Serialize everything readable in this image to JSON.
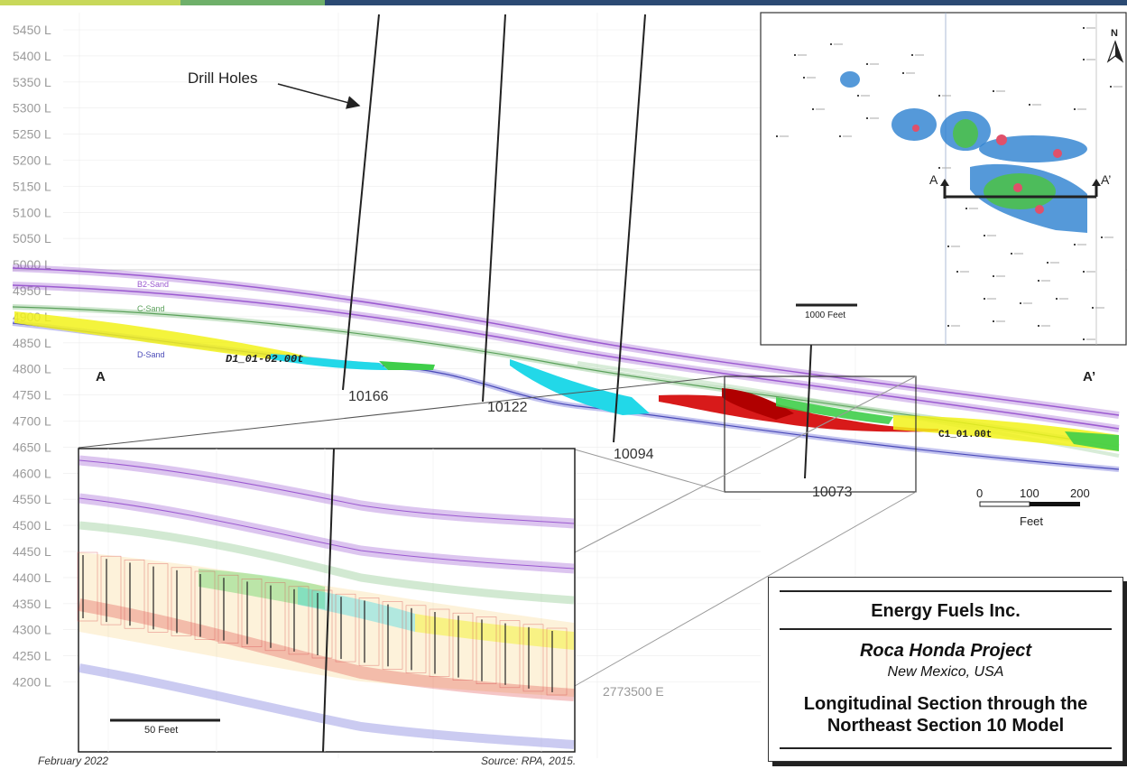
{
  "elevation_labels": [
    "5450 L",
    "5400 L",
    "5350 L",
    "5300 L",
    "5250 L",
    "5200 L",
    "5150 L",
    "5100 L",
    "5050 L",
    "5000 L",
    "4950 L",
    "4900 L",
    "4850 L",
    "4800 L",
    "4750 L",
    "4700 L",
    "4650 L",
    "4600 L",
    "4550 L",
    "4500 L",
    "4450 L",
    "4400 L",
    "4350 L",
    "4300 L",
    "4250 L",
    "4200 L"
  ],
  "callouts": {
    "drill_holes": "Drill Holes",
    "section_start": "A",
    "section_end": "A’"
  },
  "drill_holes": [
    "10166",
    "10122",
    "10094",
    "10073"
  ],
  "sand_labels": {
    "b2": "B2-Sand",
    "c": "C-Sand",
    "d": "D-Sand"
  },
  "zone_labels": {
    "d1": "D1_01-02.00t",
    "c1": "C1_01.00t"
  },
  "scale_bar": {
    "ticks": [
      "0",
      "100",
      "200"
    ],
    "unit": "Feet"
  },
  "inset_map": {
    "north": "N",
    "scale_label": "1000 Feet",
    "section_start": "A",
    "section_end": "A’"
  },
  "inset_detail": {
    "scale_label": "50 Feet",
    "easting_label": "2773500 E"
  },
  "legend": {
    "company": "Energy Fuels Inc.",
    "project": "Roca Honda Project",
    "location": "New Mexico, USA",
    "title_line1": "Longitudinal Section through the",
    "title_line2": "Northeast Section 10 Model"
  },
  "footer": {
    "date": "February 2022",
    "source": "Source:  RPA, 2015."
  },
  "colors": {
    "b2_sand": "#9b59d0",
    "c_sand": "#7fbf7f",
    "d_sand": "#6a6ad8",
    "ore_red": "#d81a1a",
    "ore_yellow": "#f2f21a",
    "ore_cyan": "#22d8e8",
    "ore_green": "#3fce4a"
  }
}
